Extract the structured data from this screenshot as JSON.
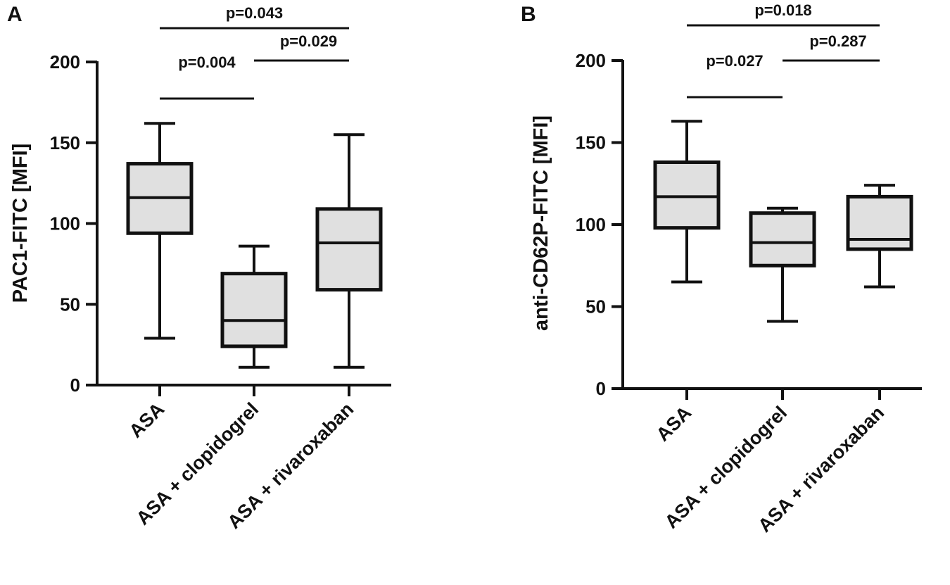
{
  "chart_data": [
    {
      "type": "box",
      "panel_label": "A",
      "ylabel": "PAC1-FITC [MFI]",
      "ylim": [
        0,
        200
      ],
      "yticks": [
        0,
        50,
        100,
        150,
        200
      ],
      "categories": [
        "ASA",
        "ASA + clopidogrel",
        "ASA + rivaroxaban"
      ],
      "boxes": [
        {
          "category": "ASA",
          "min": 29,
          "q1": 94,
          "median": 116,
          "q3": 137,
          "max": 162
        },
        {
          "category": "ASA + clopidogrel",
          "min": 11,
          "q1": 24,
          "median": 40,
          "q3": 69,
          "max": 86
        },
        {
          "category": "ASA + rivaroxaban",
          "min": 11,
          "q1": 59,
          "median": 88,
          "q3": 109,
          "max": 155
        }
      ],
      "comparisons": [
        {
          "from": 0,
          "to": 2,
          "text": "p=0.043"
        },
        {
          "from": 1,
          "to": 2,
          "text": "p=0.029"
        },
        {
          "from": 0,
          "to": 1,
          "text": "p=0.004"
        }
      ]
    },
    {
      "type": "box",
      "panel_label": "B",
      "ylabel": "anti-CD62P-FITC [MFI]",
      "ylim": [
        0,
        200
      ],
      "yticks": [
        0,
        50,
        100,
        150,
        200
      ],
      "categories": [
        "ASA",
        "ASA + clopidogrel",
        "ASA + rivaroxaban"
      ],
      "boxes": [
        {
          "category": "ASA",
          "min": 65,
          "q1": 98,
          "median": 117,
          "q3": 138,
          "max": 163
        },
        {
          "category": "ASA + clopidogrel",
          "min": 41,
          "q1": 75,
          "median": 89,
          "q3": 107,
          "max": 110
        },
        {
          "category": "ASA + rivaroxaban",
          "min": 62,
          "q1": 85,
          "median": 91,
          "q3": 117,
          "max": 124
        }
      ],
      "comparisons": [
        {
          "from": 0,
          "to": 2,
          "text": "p=0.018"
        },
        {
          "from": 1,
          "to": 2,
          "text": "p=0.287"
        },
        {
          "from": 0,
          "to": 1,
          "text": "p=0.027"
        }
      ]
    }
  ],
  "style": {
    "box_fill": "#e0e0e0",
    "stroke": "#111111"
  }
}
